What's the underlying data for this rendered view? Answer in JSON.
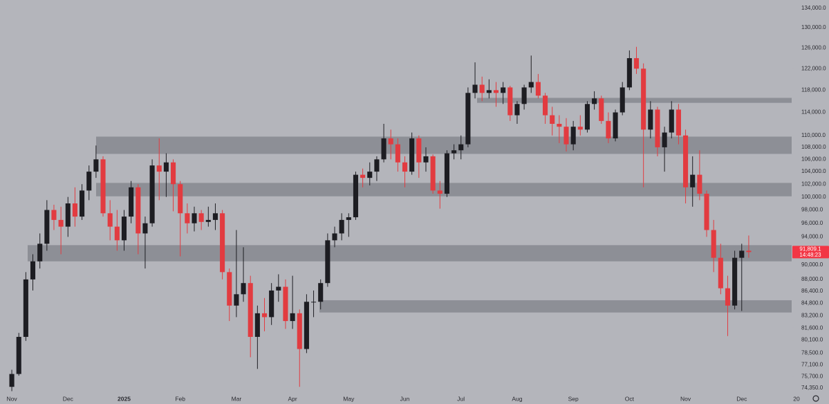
{
  "chart_data": {
    "type": "candlestick",
    "categories": [
      "Nov",
      null,
      null,
      null,
      null,
      null,
      null,
      null,
      "Dec",
      null,
      null,
      null,
      null,
      null,
      null,
      null,
      "2025",
      null,
      null,
      null,
      null,
      null,
      null,
      null,
      "Feb",
      null,
      null,
      null,
      null,
      null,
      null,
      null,
      "Mar",
      null,
      null,
      null,
      null,
      null,
      null,
      null,
      "Apr",
      null,
      null,
      null,
      null,
      null,
      null,
      null,
      "May",
      null,
      null,
      null,
      null,
      null,
      null,
      null,
      "Jun",
      null,
      null,
      null,
      null,
      null,
      null,
      null,
      "Jul",
      null,
      null,
      null,
      null,
      null,
      null,
      null,
      "Aug",
      null,
      null,
      null,
      null,
      null,
      null,
      null,
      "Sep",
      null,
      null,
      null,
      null,
      null,
      null,
      null,
      "Oct",
      null,
      null,
      null,
      null,
      null,
      null,
      null,
      "Nov",
      null,
      null,
      null,
      null,
      null,
      null,
      null,
      "Dec",
      null
    ],
    "x_end_label": "20",
    "open": [
      74500,
      76000,
      80500,
      88000,
      90500,
      93000,
      98000,
      96500,
      95500,
      99000,
      97000,
      101000,
      104000,
      106000,
      97500,
      95500,
      93500,
      97000,
      101500,
      94500,
      96000,
      105000,
      104000,
      105500,
      102000,
      97500,
      96000,
      97500,
      96200,
      96500,
      97500,
      89000,
      84500,
      86000,
      87500,
      80500,
      83500,
      83000,
      86500,
      87000,
      82500,
      83500,
      79000,
      85000,
      85000,
      87500,
      93500,
      94500,
      96500,
      96900,
      103500,
      103000,
      104000,
      106000,
      109500,
      108500,
      105500,
      104000,
      109500,
      105500,
      106500,
      101000,
      100500,
      107000,
      107500,
      108500,
      117500,
      119000,
      117500,
      118000,
      117500,
      118500,
      113500,
      115500,
      118500,
      119500,
      117000,
      113500,
      112000,
      111500,
      108500,
      111500,
      111000,
      115500,
      116500,
      112500,
      109500,
      114000,
      118500,
      124000,
      122000,
      111000,
      114500,
      108000,
      110500,
      114500,
      110000,
      101500,
      103500,
      100500,
      95000,
      91000,
      86800,
      84500,
      91000,
      92000
    ],
    "high": [
      76500,
      81000,
      89000,
      91500,
      94500,
      99500,
      98800,
      98500,
      100000,
      101500,
      102000,
      105000,
      108300,
      106500,
      99500,
      98000,
      98000,
      102500,
      102000,
      97000,
      106000,
      109500,
      107000,
      106000,
      102500,
      99000,
      98500,
      98000,
      98500,
      99000,
      98000,
      89500,
      95000,
      92500,
      88500,
      84500,
      85500,
      87500,
      88700,
      88000,
      88500,
      84000,
      86000,
      86500,
      88000,
      94500,
      95500,
      97500,
      97500,
      104000,
      104500,
      105500,
      106500,
      112000,
      111000,
      109500,
      106500,
      110500,
      110000,
      108000,
      106800,
      102500,
      107500,
      108500,
      110000,
      118500,
      123200,
      120500,
      120000,
      119500,
      119500,
      118800,
      116000,
      119000,
      124500,
      121000,
      117500,
      115000,
      113500,
      113000,
      112500,
      113500,
      116000,
      117800,
      117000,
      114000,
      114500,
      119500,
      125500,
      126200,
      123000,
      116000,
      115000,
      111500,
      116000,
      115500,
      111000,
      106500,
      107500,
      101000,
      96500,
      93000,
      88500,
      92000,
      93000,
      94200
    ],
    "low": [
      74000,
      75800,
      80000,
      86500,
      89500,
      92000,
      95000,
      91500,
      94000,
      95500,
      96500,
      99500,
      103000,
      97000,
      93500,
      92000,
      92000,
      96000,
      91500,
      89500,
      95500,
      99500,
      100000,
      97800,
      91200,
      94500,
      94800,
      95000,
      95500,
      95000,
      88000,
      82500,
      83000,
      85000,
      78000,
      76600,
      81200,
      82000,
      85000,
      81500,
      81500,
      74500,
      78500,
      83000,
      84000,
      87000,
      92500,
      93500,
      94000,
      96500,
      101500,
      101800,
      102500,
      105500,
      106000,
      104000,
      101500,
      103500,
      103000,
      104000,
      100500,
      98200,
      100000,
      106000,
      106000,
      108000,
      116500,
      116000,
      116500,
      115000,
      115500,
      112500,
      112000,
      114500,
      117500,
      116500,
      112000,
      110000,
      108700,
      107300,
      107500,
      110000,
      110500,
      114500,
      112000,
      108700,
      109000,
      113500,
      118000,
      121000,
      101500,
      109500,
      106500,
      104000,
      109500,
      108500,
      99000,
      98500,
      99500,
      94000,
      89000,
      86000,
      80600,
      84000,
      83800,
      91000
    ],
    "close": [
      76000,
      80500,
      88000,
      90500,
      93000,
      98000,
      96500,
      95500,
      99000,
      97000,
      101000,
      104000,
      106000,
      97500,
      95500,
      93500,
      97000,
      101500,
      94500,
      96000,
      105000,
      104000,
      105500,
      102000,
      97500,
      96000,
      97500,
      96200,
      96500,
      97500,
      89000,
      84500,
      86000,
      87500,
      80500,
      83500,
      83000,
      86500,
      87000,
      82500,
      83500,
      79000,
      85000,
      85000,
      87500,
      93500,
      94500,
      96500,
      96900,
      103500,
      103000,
      104000,
      106000,
      109500,
      108500,
      105500,
      104000,
      109500,
      105500,
      106500,
      101000,
      100500,
      107000,
      107500,
      108500,
      117500,
      119000,
      117500,
      118000,
      117500,
      118500,
      113500,
      115500,
      118500,
      119500,
      117000,
      113500,
      112000,
      111500,
      108500,
      111500,
      111000,
      115500,
      116500,
      112500,
      109500,
      114000,
      118500,
      124000,
      122000,
      111000,
      114500,
      108000,
      110500,
      114500,
      110000,
      101500,
      103500,
      100500,
      95000,
      91000,
      86800,
      84500,
      91000,
      92000,
      91809.1
    ],
    "up_color": "#1d1d22",
    "down_color": "#e23b40",
    "zones": [
      {
        "low": 115700,
        "high": 116600
      },
      {
        "low": 106900,
        "high": 109800
      },
      {
        "low": 100100,
        "high": 102200
      },
      {
        "low": 90500,
        "high": 92800
      },
      {
        "low": 83600,
        "high": 85200
      }
    ],
    "zone_color": "#6e7078",
    "log_scale": true,
    "ylim": [
      73800,
      135700
    ],
    "yticks": [
      {
        "value": 134000,
        "label": "134,000.0"
      },
      {
        "value": 130000,
        "label": "130,000.0"
      },
      {
        "value": 126000,
        "label": "126,000.0"
      },
      {
        "value": 122000,
        "label": "122,000.0"
      },
      {
        "value": 118000,
        "label": "118,000.0"
      },
      {
        "value": 114000,
        "label": "114,000.0"
      },
      {
        "value": 110000,
        "label": "110,000.0"
      },
      {
        "value": 108000,
        "label": "108,000.0"
      },
      {
        "value": 106000,
        "label": "106,000.0"
      },
      {
        "value": 104000,
        "label": "104,000.0"
      },
      {
        "value": 102000,
        "label": "102,000.0"
      },
      {
        "value": 100000,
        "label": "100,000.0"
      },
      {
        "value": 98000,
        "label": "98,000.0"
      },
      {
        "value": 96000,
        "label": "96,000.0"
      },
      {
        "value": 94000,
        "label": "94,000.0"
      },
      {
        "value": 90000,
        "label": "90,000.0"
      },
      {
        "value": 88000,
        "label": "88,000.0"
      },
      {
        "value": 86400,
        "label": "86,400.0"
      },
      {
        "value": 84800,
        "label": "84,800.0"
      },
      {
        "value": 83200,
        "label": "83,200.0"
      },
      {
        "value": 81600,
        "label": "81,600.0"
      },
      {
        "value": 80100,
        "label": "80,100.0"
      },
      {
        "value": 78500,
        "label": "78,500.0"
      },
      {
        "value": 77100,
        "label": "77,100.0"
      },
      {
        "value": 75700,
        "label": "75,700.0"
      },
      {
        "value": 74350,
        "label": "74,350.0"
      }
    ],
    "last_price": {
      "value": 91809.1,
      "label": "91,809.1"
    },
    "countdown": "14:48:23",
    "last_price_color": "#f23645"
  }
}
